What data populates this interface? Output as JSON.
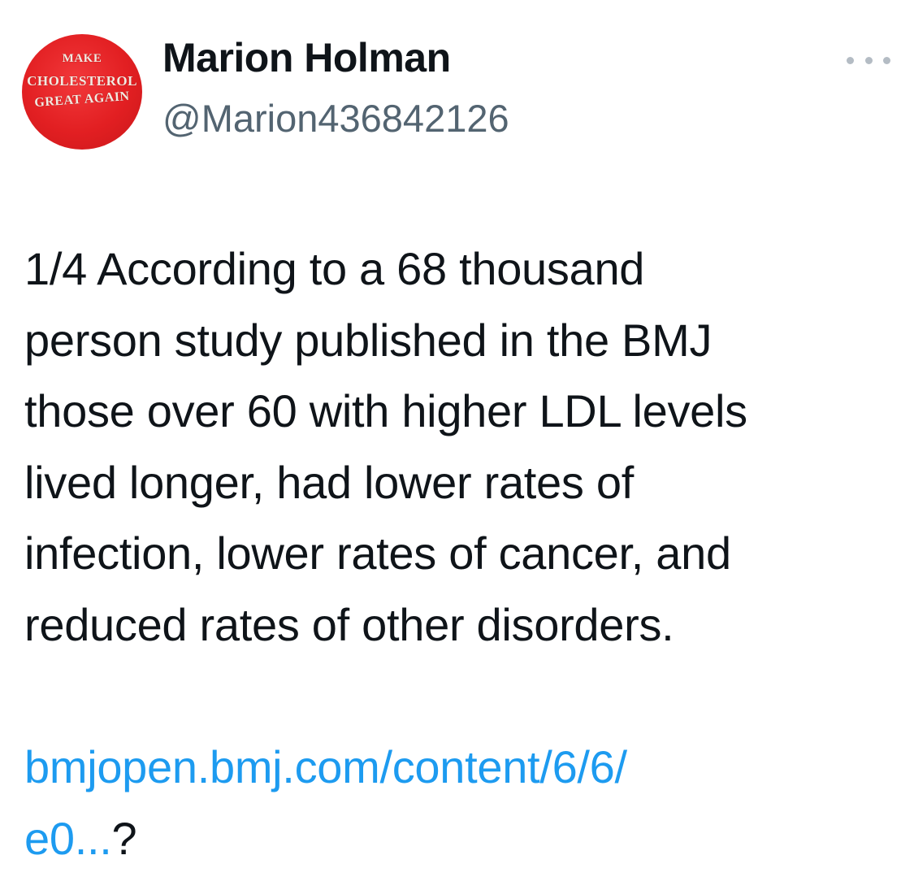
{
  "author": {
    "avatar_text": [
      "MAKE",
      "CHOLESTEROL",
      "GREAT AGAIN"
    ],
    "display_name": "Marion Holman",
    "handle": "@Marion436842126"
  },
  "more_icon": "more-horizontal-icon",
  "tweet": {
    "lines": [
      "1/4 According to a 68 thousand",
      "person study published in the BMJ",
      "those over 60 with higher LDL levels",
      "lived longer, had lower rates of",
      "infection, lower rates of cancer, and",
      "reduced rates of other disorders."
    ],
    "link_line_1": "bmjopen.bmj.com/content/6/6/",
    "link_line_2": "e0...",
    "link_suffix": "?"
  },
  "colors": {
    "text": "#0f1419",
    "secondary": "#536471",
    "link": "#1d9bf0",
    "avatar_red": "#e21f22"
  }
}
